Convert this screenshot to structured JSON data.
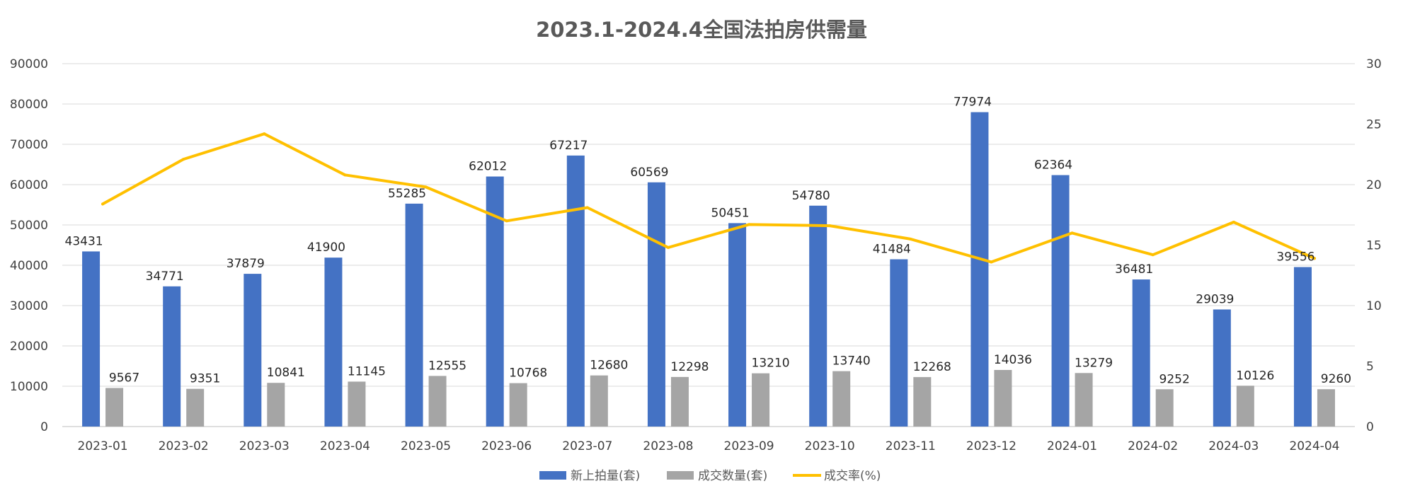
{
  "chart_data": {
    "type": "bar",
    "title": "2023.1-2024.4全国法拍房供需量",
    "categories": [
      "2023-01",
      "2023-02",
      "2023-03",
      "2023-04",
      "2023-05",
      "2023-06",
      "2023-07",
      "2023-08",
      "2023-09",
      "2023-10",
      "2023-11",
      "2023-12",
      "2024-01",
      "2024-02",
      "2024-03",
      "2024-04"
    ],
    "series": [
      {
        "name": "新上拍量(套)",
        "kind": "bar",
        "axis": "left",
        "color": "#4472C4",
        "values": [
          43431,
          34771,
          37879,
          41900,
          55285,
          62012,
          67217,
          60569,
          50451,
          54780,
          41484,
          77974,
          62364,
          36481,
          29039,
          39556
        ]
      },
      {
        "name": "成交数量(套)",
        "kind": "bar",
        "axis": "left",
        "color": "#A5A5A5",
        "values": [
          9567,
          9351,
          10841,
          11145,
          12555,
          10768,
          12680,
          12298,
          13210,
          13740,
          12268,
          14036,
          13279,
          9252,
          10126,
          9260
        ]
      },
      {
        "name": "成交率(%)",
        "kind": "line",
        "axis": "right",
        "color": "#FFC000",
        "values": [
          18.4,
          22.1,
          24.2,
          20.8,
          19.8,
          17.0,
          18.1,
          14.8,
          16.7,
          16.6,
          15.5,
          13.6,
          16.0,
          14.2,
          16.9,
          13.9
        ]
      }
    ],
    "y_left": {
      "min": 0,
      "max": 90000,
      "step": 10000
    },
    "y_right": {
      "min": 0,
      "max": 30,
      "step": 5
    },
    "grid": true,
    "legend_position": "bottom"
  }
}
